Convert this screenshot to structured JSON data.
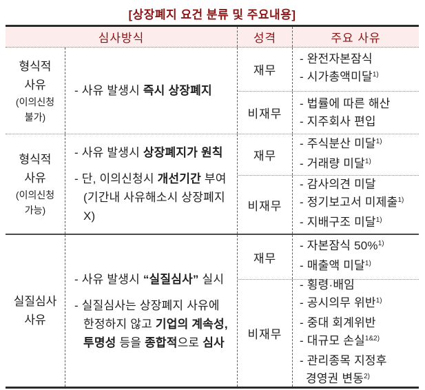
{
  "title": "[상장폐지 요건 분류 및 주요내용]",
  "colors": {
    "accent_red": "#8c1414",
    "header_bg": "#fcecec",
    "border_dark": "#2b2b2b",
    "text": "#1f1f1f"
  },
  "header": {
    "method": "심사방식",
    "nature": "성격",
    "reason": "주요 사유"
  },
  "groups": [
    {
      "label": [
        "형식적",
        "사유"
      ],
      "note": [
        "(이의신청",
        "불가)"
      ],
      "method": [
        [
          {
            "t": "- 사유 발생시 "
          },
          {
            "t": "즉시 상장폐지",
            "b": true
          }
        ]
      ],
      "rows": [
        {
          "nature": "재무",
          "reasons": [
            [
              {
                "t": "- 완전자본잠식"
              }
            ],
            [
              {
                "t": "- 시가총액미달"
              },
              {
                "t": "1)",
                "sup": true
              }
            ]
          ]
        },
        {
          "nature": "비재무",
          "reasons": [
            [
              {
                "t": "- 법률에 따른 해산"
              }
            ],
            [
              {
                "t": "- 지주회사 편입"
              }
            ]
          ]
        }
      ]
    },
    {
      "label": [
        "형식적",
        "사유"
      ],
      "note": [
        "(이의신청",
        "가능)"
      ],
      "method": [
        [
          {
            "t": "- 사유 발생시 "
          },
          {
            "t": "상장폐지가 원칙",
            "b": true
          }
        ],
        [
          {
            "t": "- 단, 이의신청시 "
          },
          {
            "t": "개선기간",
            "b": true
          },
          {
            "t": " 부여"
          }
        ],
        [
          {
            "t": "(기간내 사유해소시 상장폐지X)"
          }
        ]
      ],
      "rows": [
        {
          "nature": "재무",
          "reasons": [
            [
              {
                "t": "- 주식분산 미달"
              },
              {
                "t": "1)",
                "sup": true
              }
            ],
            [
              {
                "t": "- 거래량 미달"
              },
              {
                "t": "1)",
                "sup": true
              }
            ]
          ]
        },
        {
          "nature": "비재무",
          "reasons": [
            [
              {
                "t": "- 감사의견 미달"
              }
            ],
            [
              {
                "t": "- 정기보고서 미제출"
              },
              {
                "t": "1)",
                "sup": true
              }
            ],
            [
              {
                "t": "- 지배구조 미달"
              },
              {
                "t": "1)",
                "sup": true
              }
            ]
          ]
        }
      ]
    },
    {
      "label": [
        "실질심사",
        "사유"
      ],
      "note": [],
      "method": [
        [
          {
            "t": "- 사유 발생시 "
          },
          {
            "t": "“실질심사”",
            "b": true
          },
          {
            "t": " 실시"
          }
        ],
        [
          {
            "t": "- 실질심사는 상장폐지 사유에"
          }
        ],
        [
          {
            "t": "한정하지 않고 "
          },
          {
            "t": "기업의 계속성,",
            "b": true
          }
        ],
        [
          {
            "t": "투명성",
            "b": true
          },
          {
            "t": " 등을 "
          },
          {
            "t": "종합적",
            "b": true
          },
          {
            "t": "으로 "
          },
          {
            "t": "심사",
            "b": true
          }
        ]
      ],
      "rows": [
        {
          "nature": "재무",
          "reasons": [
            [
              {
                "t": "- 자본잠식 50%"
              },
              {
                "t": "1)",
                "sup": true
              }
            ],
            [
              {
                "t": "- 매출액 미달"
              },
              {
                "t": "1)",
                "sup": true
              }
            ]
          ]
        },
        {
          "nature": "비재무",
          "reasons": [
            [
              {
                "t": "- 횡령·배임"
              }
            ],
            [
              {
                "t": "- 공시의무 위반"
              },
              {
                "t": "1)",
                "sup": true
              }
            ],
            [
              {
                "t": "- 중대 회계위반"
              }
            ],
            [
              {
                "t": "- 대규모 손실"
              },
              {
                "t": "1&2)",
                "sup": true
              }
            ],
            [
              {
                "t": "- 관리종목 지정후"
              }
            ],
            [
              {
                "t": "경영권 변동"
              },
              {
                "t": "2)",
                "sup": true
              }
            ]
          ]
        }
      ]
    }
  ]
}
